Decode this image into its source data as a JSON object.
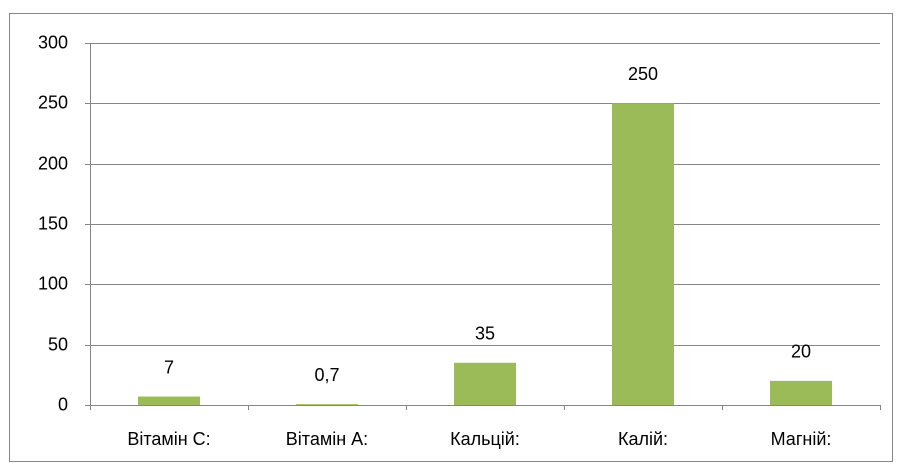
{
  "chart_data": {
    "type": "bar",
    "categories": [
      "Вітамін С:",
      "Вітамін А:",
      "Кальцій:",
      "Калій:",
      "Магній:"
    ],
    "values": [
      7,
      0.7,
      35,
      250,
      20
    ],
    "value_labels": [
      "7",
      "0,7",
      "35",
      "250",
      "20"
    ],
    "color": "#9bbb59",
    "ylim": [
      0,
      300
    ],
    "yticks": [
      0,
      50,
      100,
      150,
      200,
      250,
      300
    ],
    "grid": true
  }
}
